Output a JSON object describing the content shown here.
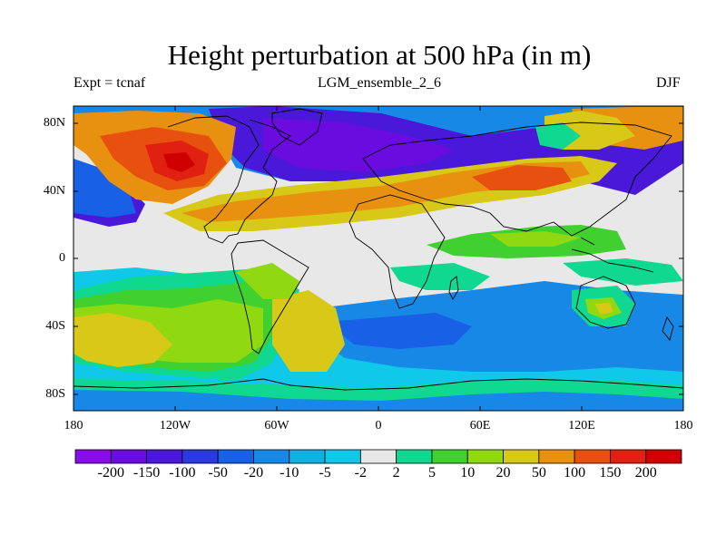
{
  "title": "Height perturbation at 500 hPa (in m)",
  "subtitle_left": "Expt = tcnaf",
  "subtitle_center": "LGM_ensemble_2_6",
  "subtitle_right": "DJF",
  "lat_labels": [
    "80N",
    "40N",
    "0",
    "40S",
    "80S"
  ],
  "lon_labels": [
    "180",
    "120W",
    "60W",
    "0",
    "60E",
    "120E",
    "180"
  ],
  "colorbar": {
    "levels": [
      "-200",
      "-150",
      "-100",
      "-50",
      "-20",
      "-10",
      "-5",
      "-2",
      "2",
      "5",
      "10",
      "20",
      "50",
      "100",
      "150",
      "200"
    ],
    "colors": [
      "#8a0ce6",
      "#6a0ce0",
      "#4a18d8",
      "#2a3adc",
      "#1860e6",
      "#1888e6",
      "#10b0e0",
      "#10c8e8",
      "#e8e8e8",
      "#10d890",
      "#40d030",
      "#90d810",
      "#d8c818",
      "#e89010",
      "#e85010",
      "#e02010",
      "#d00000"
    ]
  },
  "map_colors": {
    "neutral": "#e8e8e8",
    "coast": "#000000"
  }
}
